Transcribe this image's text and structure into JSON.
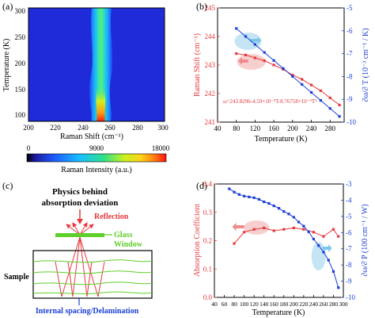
{
  "colors": {
    "red": "#e8383d",
    "blue": "#1c3fd6",
    "green": "#5fcf2a",
    "axis": "#000000"
  },
  "panel_a": {
    "label": "(a)",
    "ylabel": "Temperature (K)",
    "xlabel": "Raman Shift  (cm⁻¹)",
    "xticks": [
      "200",
      "220",
      "240",
      "260",
      "280",
      "300"
    ],
    "yticks": [
      "100",
      "150",
      "200",
      "250",
      "300"
    ],
    "colorbar_ticks": [
      "0",
      "9000",
      "18000"
    ],
    "colorbar_label": "Raman Intensity (a.u.)"
  },
  "panel_b": {
    "label": "(b)",
    "ylabel_left": "Raman Shift (cm⁻¹)",
    "ylabel_right": "∂ω/∂ T (10⁻³ cm⁻¹ / K)",
    "xlabel": "Temperature (K)",
    "equation": "ω=243.8296-4.59×10⁻³T-8.76758×10⁻⁶T²",
    "xticks": [
      "40",
      "80",
      "120",
      "160",
      "200",
      "240",
      "280"
    ],
    "yticks_left": [
      "241",
      "242",
      "243",
      "244",
      "245"
    ],
    "yticks_right": [
      "-10",
      "-9",
      "-8",
      "-7",
      "-6",
      "-5"
    ]
  },
  "panel_c": {
    "label": "(c)",
    "title_line1": "Physics behind",
    "title_line2": "absorption deviation",
    "reflection": "Reflection",
    "glass_line1": "Glass",
    "glass_line2": "Window",
    "sample": "Sample",
    "spacing": "Internal spacing/Delamination"
  },
  "panel_d": {
    "label": "(d)",
    "ylabel_left": "Absorption Coefficient",
    "ylabel_right": "∂ω/∂ P (100 cm⁻¹ / W)",
    "xlabel": "Temperature (K)",
    "xticks": [
      "40",
      "60",
      "80",
      "100",
      "120",
      "140",
      "160",
      "180",
      "200",
      "220",
      "240",
      "260",
      "280",
      "300"
    ],
    "yticks_left": [
      "0.0",
      "0.1",
      "0.2",
      "0.3",
      "0.4"
    ],
    "yticks_right": [
      "-10",
      "-9",
      "-8",
      "-7",
      "-6",
      "-5",
      "-4",
      "-3"
    ]
  },
  "chart_data": [
    {
      "panel": "a",
      "type": "heatmap",
      "xlabel": "Raman Shift  (cm⁻¹)",
      "ylabel": "Temperature (K)",
      "xlim": [
        200,
        300
      ],
      "ylim": [
        80,
        300
      ],
      "peak_center_cm": 241,
      "colorbar": {
        "min": 0,
        "max": 18000,
        "label": "Raman Intensity (a.u.)"
      }
    },
    {
      "panel": "b",
      "type": "line",
      "xlabel": "Temperature (K)",
      "xlim": [
        40,
        310
      ],
      "series": [
        {
          "axis": "left",
          "ylim": [
            241,
            245
          ],
          "color": "#e8383d",
          "x": [
            80,
            100,
            120,
            140,
            160,
            180,
            200,
            220,
            240,
            260,
            280,
            300
          ],
          "y": [
            243.4,
            243.35,
            243.25,
            243.15,
            243.0,
            242.85,
            242.65,
            242.5,
            242.3,
            242.1,
            241.85,
            241.6
          ]
        },
        {
          "axis": "right",
          "ylim": [
            -10,
            -5
          ],
          "color": "#1c3fd6",
          "x": [
            80,
            100,
            120,
            140,
            160,
            180,
            200,
            220,
            240,
            260,
            280,
            300
          ],
          "y": [
            -5.9,
            -6.25,
            -6.6,
            -6.95,
            -7.3,
            -7.65,
            -8.0,
            -8.35,
            -8.7,
            -9.05,
            -9.4,
            -9.75
          ]
        }
      ]
    },
    {
      "panel": "d",
      "type": "line",
      "xlabel": "Temperature (K)",
      "xlim": [
        40,
        300
      ],
      "series": [
        {
          "axis": "left",
          "ylim": [
            0.0,
            0.4
          ],
          "color": "#e8383d",
          "x": [
            80,
            100,
            120,
            140,
            160,
            180,
            200,
            220,
            240,
            260,
            280,
            290
          ],
          "y": [
            0.19,
            0.23,
            0.24,
            0.245,
            0.235,
            0.24,
            0.245,
            0.24,
            0.23,
            0.215,
            0.24,
            0.215
          ]
        },
        {
          "axis": "right",
          "ylim": [
            -10,
            -3
          ],
          "color": "#1c3fd6",
          "x": [
            70,
            80,
            90,
            100,
            110,
            120,
            130,
            140,
            150,
            160,
            170,
            180,
            190,
            200,
            210,
            220,
            230,
            240,
            250,
            260,
            270,
            280,
            290
          ],
          "y": [
            -3.3,
            -3.5,
            -3.65,
            -3.75,
            -3.8,
            -3.85,
            -3.95,
            -4.1,
            -4.2,
            -4.35,
            -4.5,
            -4.7,
            -4.85,
            -5.05,
            -5.35,
            -5.6,
            -5.95,
            -6.4,
            -6.8,
            -7.2,
            -7.7,
            -8.4,
            -9.4
          ]
        }
      ]
    }
  ]
}
